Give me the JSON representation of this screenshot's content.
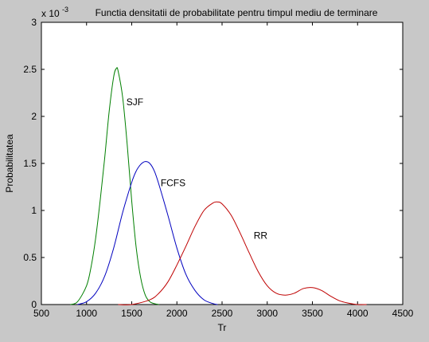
{
  "chart_data": {
    "type": "line",
    "title": "Functia densitatii de probabilitate pentru timpul mediu de terminare",
    "xlabel": "Tr",
    "ylabel": "Probabilitatea",
    "xlim": [
      500,
      4500
    ],
    "ylim": [
      0,
      3
    ],
    "y_multiplier": {
      "base": "x 10",
      "exponent": "-3"
    },
    "xticks": [
      "500",
      "1000",
      "1500",
      "2000",
      "2500",
      "3000",
      "3500",
      "4000",
      "4500"
    ],
    "yticks": [
      "0",
      "0.5",
      "1",
      "1.5",
      "2",
      "2.5",
      "3"
    ],
    "grid": false,
    "legend": "none",
    "series": [
      {
        "label": "SJF",
        "color": "#007f00",
        "x": [
          820,
          900,
          1000,
          1050,
          1100,
          1150,
          1200,
          1250,
          1300,
          1330,
          1350,
          1400,
          1450,
          1500,
          1550,
          1600,
          1650,
          1700,
          1750,
          1800
        ],
        "y": [
          0.0,
          0.03,
          0.2,
          0.4,
          0.7,
          1.1,
          1.55,
          2.05,
          2.42,
          2.51,
          2.48,
          2.2,
          1.7,
          1.1,
          0.6,
          0.28,
          0.1,
          0.03,
          0.01,
          0.0
        ],
        "annotation_x": 1440,
        "annotation_y": 2.12
      },
      {
        "label": "FCFS",
        "color": "#0000bf",
        "x": [
          900,
          1000,
          1100,
          1200,
          1300,
          1400,
          1500,
          1550,
          1600,
          1650,
          1700,
          1750,
          1800,
          1900,
          2000,
          2100,
          2200,
          2300,
          2400,
          2450
        ],
        "y": [
          0.0,
          0.03,
          0.12,
          0.3,
          0.6,
          0.98,
          1.3,
          1.42,
          1.49,
          1.52,
          1.5,
          1.42,
          1.28,
          0.95,
          0.6,
          0.32,
          0.15,
          0.05,
          0.01,
          0.0
        ],
        "annotation_x": 1820,
        "annotation_y": 1.26
      },
      {
        "label": "RR",
        "color": "#bf0000",
        "x": [
          1350,
          1500,
          1700,
          1800,
          1900,
          2000,
          2100,
          2200,
          2300,
          2400,
          2450,
          2500,
          2600,
          2700,
          2800,
          2900,
          3000,
          3100,
          3200,
          3300,
          3400,
          3500,
          3600,
          3700,
          3800,
          3900,
          4000,
          4100
        ],
        "y": [
          0.0,
          0.0,
          0.05,
          0.12,
          0.24,
          0.42,
          0.62,
          0.83,
          1.0,
          1.08,
          1.09,
          1.07,
          0.95,
          0.76,
          0.55,
          0.35,
          0.2,
          0.12,
          0.1,
          0.12,
          0.17,
          0.18,
          0.15,
          0.09,
          0.04,
          0.015,
          0.0,
          0.0
        ],
        "annotation_x": 2850,
        "annotation_y": 0.7
      }
    ]
  }
}
